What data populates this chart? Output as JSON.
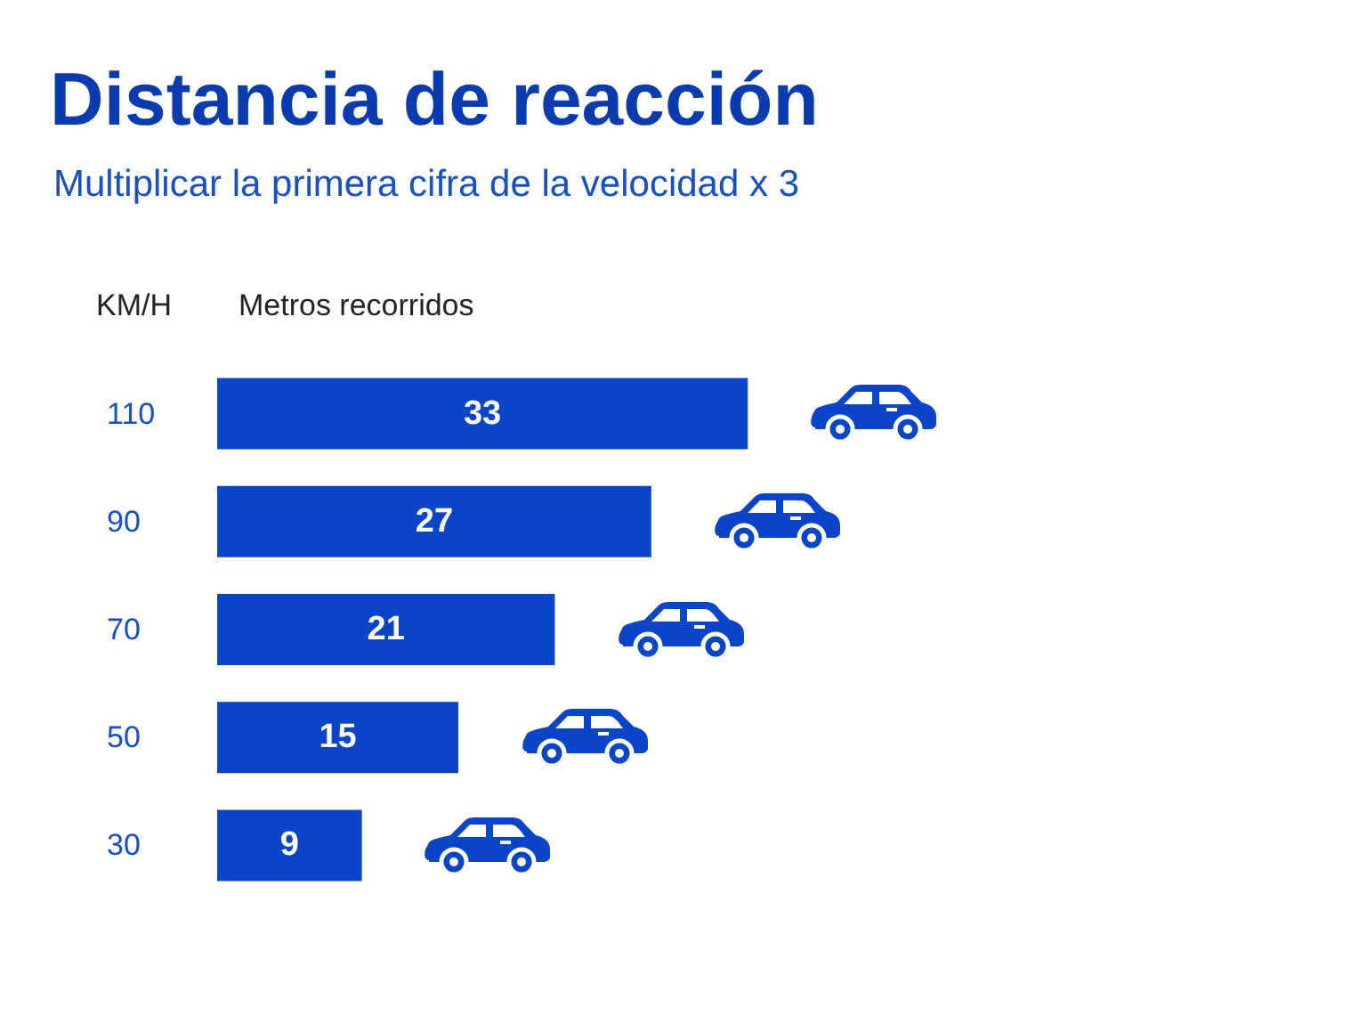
{
  "chart_data": {
    "type": "bar",
    "orientation": "horizontal",
    "title": "Distancia de reacción",
    "subtitle": "Multiplicar la primera cifra de la velocidad x 3",
    "ylabel": "KM/H",
    "xlabel": "Metros recorridos",
    "categories": [
      "110",
      "90",
      "70",
      "50",
      "30"
    ],
    "values": [
      33,
      27,
      21,
      15,
      9
    ],
    "color": "#0a45c9",
    "data_labels": true
  }
}
